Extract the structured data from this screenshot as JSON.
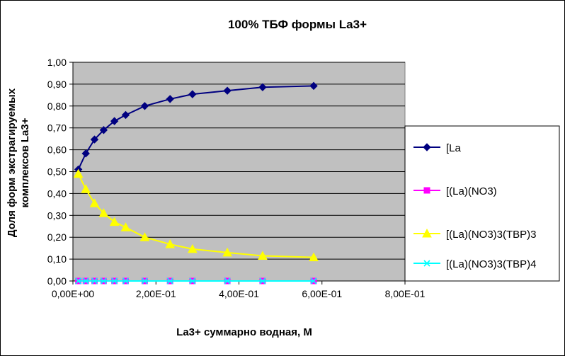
{
  "chart_data": {
    "type": "line",
    "title": "100%  ТБФ  формы La3+",
    "xlabel": "La3+ суммарно  водная, М",
    "ylabel_lines": [
      "Доля форм экстрагируемых",
      "комплексов La3+"
    ],
    "xlim": [
      0,
      0.8
    ],
    "ylim": [
      0,
      1.0
    ],
    "x_ticks": [
      0,
      0.2,
      0.4,
      0.6,
      0.8
    ],
    "x_tick_labels": [
      "0,00E+00",
      "2,00E-01",
      "4,00E-01",
      "6,00E-01",
      "8,00E-01"
    ],
    "y_ticks": [
      0,
      0.1,
      0.2,
      0.3,
      0.4,
      0.5,
      0.6,
      0.7,
      0.8,
      0.9,
      1.0
    ],
    "y_tick_labels": [
      "0,00",
      "0,10",
      "0,20",
      "0,30",
      "0,40",
      "0,50",
      "0,60",
      "0,70",
      "0,80",
      "0,90",
      "1,00"
    ],
    "grid": true,
    "legend_position": "right",
    "x": [
      0.013,
      0.031,
      0.052,
      0.074,
      0.1,
      0.127,
      0.173,
      0.234,
      0.288,
      0.372,
      0.457,
      0.58
    ],
    "series": [
      {
        "name": "[La",
        "color": "#000080",
        "marker": "diamond",
        "values": [
          0.51,
          0.583,
          0.647,
          0.69,
          0.731,
          0.759,
          0.8,
          0.832,
          0.854,
          0.87,
          0.886,
          0.892
        ]
      },
      {
        "name": "[(La)(NO3)",
        "color": "#FF00FF",
        "marker": "square",
        "values": [
          0,
          0,
          0,
          0,
          0,
          0,
          0,
          0,
          0,
          0,
          0,
          0
        ]
      },
      {
        "name": "[(La)(NO3)3(TBP)3",
        "color": "#FFFF00",
        "marker": "triangle",
        "values": [
          0.49,
          0.42,
          0.355,
          0.31,
          0.27,
          0.245,
          0.2,
          0.168,
          0.146,
          0.13,
          0.115,
          0.108
        ]
      },
      {
        "name": "[(La)(NO3)3(TBP)4",
        "color": "#00FFFF",
        "marker": "x",
        "values": [
          0,
          0,
          0,
          0,
          0,
          0,
          0,
          0,
          0,
          0,
          0,
          0
        ]
      }
    ],
    "plot_background": "#C0C0C0"
  }
}
